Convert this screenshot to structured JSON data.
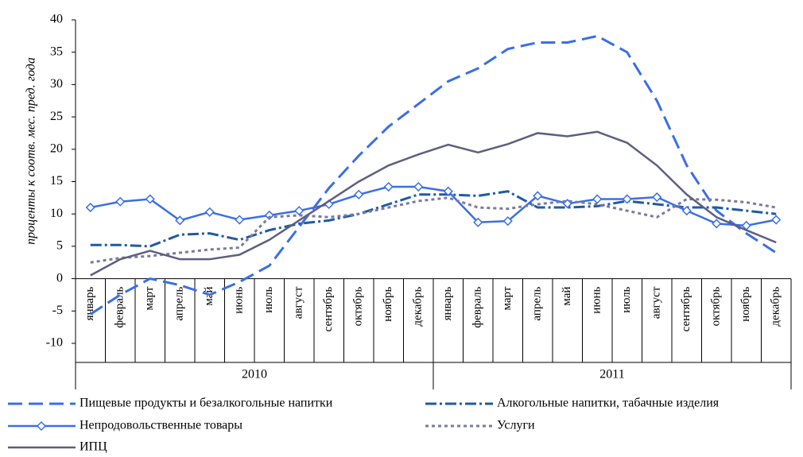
{
  "chart_data": {
    "type": "line",
    "y_label": "проценты к соотв. мес. пред. года",
    "categories": [
      "январь",
      "февраль",
      "март",
      "апрель",
      "май",
      "июнь",
      "июль",
      "август",
      "сентябрь",
      "октябрь",
      "ноябрь",
      "декабрь",
      "январь",
      "февраль",
      "март",
      "апрель",
      "май",
      "июнь",
      "июль",
      "август",
      "сентябрь",
      "октябрь",
      "ноябрь",
      "декабрь"
    ],
    "groups": [
      "2010",
      "2011"
    ],
    "ylim": [
      -10,
      40
    ],
    "yticks": [
      -10,
      -5,
      0,
      5,
      10,
      15,
      20,
      25,
      30,
      35,
      40
    ],
    "grid": false,
    "series": [
      {
        "name": "Пищевые продукты и безалкогольные напитки",
        "color": "#3a6ee8",
        "style": "dashed",
        "values": [
          -5.5,
          -2.5,
          0,
          -1,
          -2.5,
          -0.5,
          2,
          8,
          14,
          19,
          23.5,
          27,
          30.5,
          32.5,
          35.5,
          36.5,
          36.5,
          37.5,
          35,
          27.5,
          17.5,
          10.5,
          7,
          4
        ]
      },
      {
        "name": "Алкогольные напитки, табачные изделия",
        "color": "#1f5aa6",
        "style": "dashdot",
        "values": [
          5.2,
          5.2,
          5,
          6.8,
          7,
          6,
          7.5,
          8.5,
          9,
          10,
          11.5,
          13,
          13,
          12.8,
          13.5,
          11,
          11,
          11.2,
          12,
          11.5,
          11,
          11,
          10.5,
          10
        ]
      },
      {
        "name": "Непродовольственные товары",
        "color": "#3a6ee8",
        "style": "solid",
        "marker": "diamond",
        "values": [
          11,
          11.9,
          12.3,
          9,
          10.3,
          9.1,
          9.8,
          10.5,
          11.5,
          13,
          14.2,
          14.2,
          13.5,
          8.7,
          8.9,
          12.8,
          11.6,
          12.3,
          12.3,
          12.6,
          10.5,
          8.5,
          8.2,
          9.1
        ]
      },
      {
        "name": "Услуги",
        "color": "#7a7a9e",
        "style": "dotted",
        "values": [
          2.5,
          3.2,
          3.5,
          4,
          4.5,
          4.8,
          9.5,
          9.8,
          9.5,
          10,
          11,
          12,
          12.5,
          11,
          10.8,
          11.5,
          12,
          11.5,
          10.5,
          9.5,
          12.3,
          12.2,
          11.8,
          11
        ]
      },
      {
        "name": "ИПЦ",
        "color": "#5e5e80",
        "style": "solid",
        "values": [
          0.5,
          3,
          4.3,
          3,
          3,
          3.7,
          6,
          9,
          12,
          15,
          17.5,
          19.2,
          20.7,
          19.5,
          20.8,
          22.5,
          22,
          22.7,
          21,
          17.5,
          13,
          9.5,
          7.5,
          5.6
        ]
      }
    ]
  }
}
